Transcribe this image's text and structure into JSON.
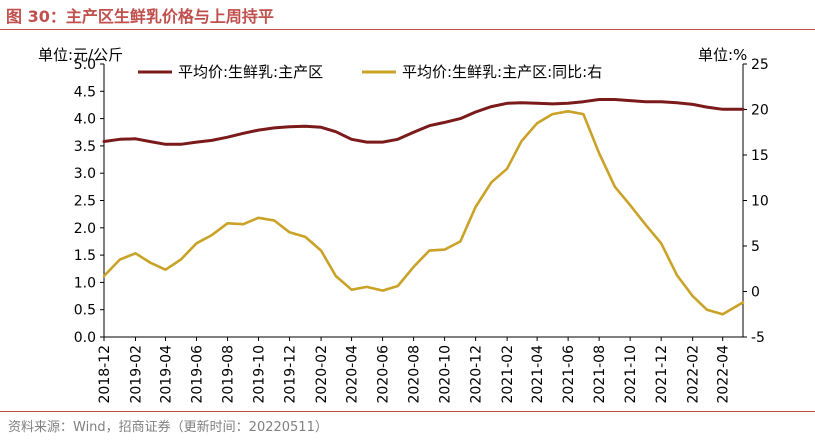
{
  "figure": {
    "title": "图 30：主产区生鲜乳价格与上周持平",
    "source": "资料来源：Wind，招商证券（更新时间：20220511）",
    "accent_color": "#c0504d"
  },
  "chart_data": {
    "type": "line",
    "left_axis_unit": "单位:元/公斤",
    "right_axis_unit": "单位:%",
    "left_ylim": [
      0,
      5
    ],
    "right_ylim": [
      -5,
      25
    ],
    "left_ticks": [
      "0.0",
      "0.5",
      "1.0",
      "1.5",
      "2.0",
      "2.5",
      "3.0",
      "3.5",
      "4.0",
      "4.5",
      "5.0"
    ],
    "right_ticks": [
      "-5",
      "0",
      "5",
      "10",
      "15",
      "20",
      "25"
    ],
    "x_ticks": [
      "2018-12",
      "2019-02",
      "2019-04",
      "2019-06",
      "2019-08",
      "2019-10",
      "2019-12",
      "2020-02",
      "2020-04",
      "2020-06",
      "2020-08",
      "2020-10",
      "2020-12",
      "2021-02",
      "2021-04",
      "2021-06",
      "2021-08",
      "2021-10",
      "2021-12",
      "2022-02",
      "2022-04"
    ],
    "x_range": [
      "2018-12-01",
      "2022-05-11"
    ],
    "grid": false,
    "legend_position": "top",
    "series": [
      {
        "name": "平均价:生鲜乳:主产区",
        "axis": "left",
        "color": "#7b1a1a",
        "points": [
          [
            "2018-12-01",
            3.58
          ],
          [
            "2019-01-01",
            3.62
          ],
          [
            "2019-02-01",
            3.63
          ],
          [
            "2019-03-01",
            3.58
          ],
          [
            "2019-04-01",
            3.53
          ],
          [
            "2019-05-01",
            3.53
          ],
          [
            "2019-06-01",
            3.57
          ],
          [
            "2019-07-01",
            3.6
          ],
          [
            "2019-08-01",
            3.66
          ],
          [
            "2019-09-01",
            3.73
          ],
          [
            "2019-10-01",
            3.79
          ],
          [
            "2019-11-01",
            3.83
          ],
          [
            "2019-12-01",
            3.85
          ],
          [
            "2020-01-01",
            3.86
          ],
          [
            "2020-02-01",
            3.84
          ],
          [
            "2020-03-01",
            3.76
          ],
          [
            "2020-04-01",
            3.62
          ],
          [
            "2020-05-01",
            3.57
          ],
          [
            "2020-06-01",
            3.57
          ],
          [
            "2020-07-01",
            3.62
          ],
          [
            "2020-08-01",
            3.75
          ],
          [
            "2020-09-01",
            3.87
          ],
          [
            "2020-10-01",
            3.93
          ],
          [
            "2020-11-01",
            4.0
          ],
          [
            "2020-12-01",
            4.12
          ],
          [
            "2021-01-01",
            4.22
          ],
          [
            "2021-02-01",
            4.28
          ],
          [
            "2021-03-01",
            4.29
          ],
          [
            "2021-04-01",
            4.28
          ],
          [
            "2021-05-01",
            4.27
          ],
          [
            "2021-06-01",
            4.28
          ],
          [
            "2021-07-01",
            4.31
          ],
          [
            "2021-08-01",
            4.35
          ],
          [
            "2021-09-01",
            4.35
          ],
          [
            "2021-10-01",
            4.33
          ],
          [
            "2021-11-01",
            4.31
          ],
          [
            "2021-12-01",
            4.31
          ],
          [
            "2022-01-01",
            4.29
          ],
          [
            "2022-02-01",
            4.26
          ],
          [
            "2022-03-01",
            4.21
          ],
          [
            "2022-04-01",
            4.17
          ],
          [
            "2022-05-11",
            4.17
          ]
        ]
      },
      {
        "name": "平均价:生鲜乳:主产区:同比:右",
        "axis": "right",
        "color": "#c9a227",
        "points": [
          [
            "2018-12-01",
            1.7
          ],
          [
            "2019-01-01",
            3.5
          ],
          [
            "2019-02-01",
            4.2
          ],
          [
            "2019-03-01",
            3.2
          ],
          [
            "2019-04-01",
            2.4
          ],
          [
            "2019-05-01",
            3.5
          ],
          [
            "2019-06-01",
            5.3
          ],
          [
            "2019-07-01",
            6.2
          ],
          [
            "2019-08-01",
            7.5
          ],
          [
            "2019-09-01",
            7.4
          ],
          [
            "2019-10-01",
            8.1
          ],
          [
            "2019-11-01",
            7.8
          ],
          [
            "2019-12-01",
            6.5
          ],
          [
            "2020-01-01",
            6.0
          ],
          [
            "2020-02-01",
            4.5
          ],
          [
            "2020-03-01",
            1.7
          ],
          [
            "2020-04-01",
            0.2
          ],
          [
            "2020-05-01",
            0.5
          ],
          [
            "2020-06-01",
            0.1
          ],
          [
            "2020-07-01",
            0.6
          ],
          [
            "2020-08-01",
            2.7
          ],
          [
            "2020-09-01",
            4.5
          ],
          [
            "2020-10-01",
            4.6
          ],
          [
            "2020-11-01",
            5.5
          ],
          [
            "2020-12-01",
            9.3
          ],
          [
            "2021-01-01",
            12.0
          ],
          [
            "2021-02-01",
            13.5
          ],
          [
            "2021-03-01",
            16.5
          ],
          [
            "2021-04-01",
            18.5
          ],
          [
            "2021-05-01",
            19.5
          ],
          [
            "2021-06-01",
            19.8
          ],
          [
            "2021-07-01",
            19.5
          ],
          [
            "2021-08-01",
            15.2
          ],
          [
            "2021-09-01",
            11.5
          ],
          [
            "2021-10-01",
            9.5
          ],
          [
            "2021-11-01",
            7.3
          ],
          [
            "2021-12-01",
            5.3
          ],
          [
            "2022-01-01",
            1.8
          ],
          [
            "2022-02-01",
            -0.5
          ],
          [
            "2022-03-01",
            -2.0
          ],
          [
            "2022-04-01",
            -2.5
          ],
          [
            "2022-05-11",
            -1.2
          ]
        ]
      }
    ]
  }
}
